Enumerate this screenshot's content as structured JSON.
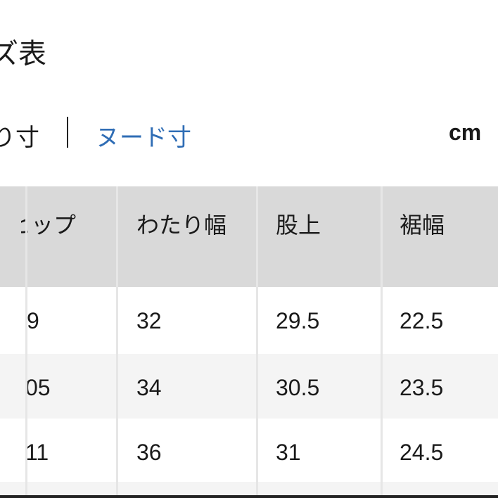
{
  "title": "ズ表",
  "tabs": {
    "measure": "り寸",
    "nude": "ヌード寸"
  },
  "unit": "cm",
  "colors": {
    "header_bg": "#d9d9d9",
    "link": "#2f6db5",
    "alt_row": "#f4f4f4"
  },
  "table": {
    "headers": [
      "ヒップ",
      "わたり幅",
      "股上",
      "裾幅"
    ],
    "rows": [
      [
        "9",
        "32",
        "29.5",
        "22.5"
      ],
      [
        "05",
        "34",
        "30.5",
        "23.5"
      ],
      [
        "11",
        "36",
        "31",
        "24.5"
      ]
    ]
  }
}
